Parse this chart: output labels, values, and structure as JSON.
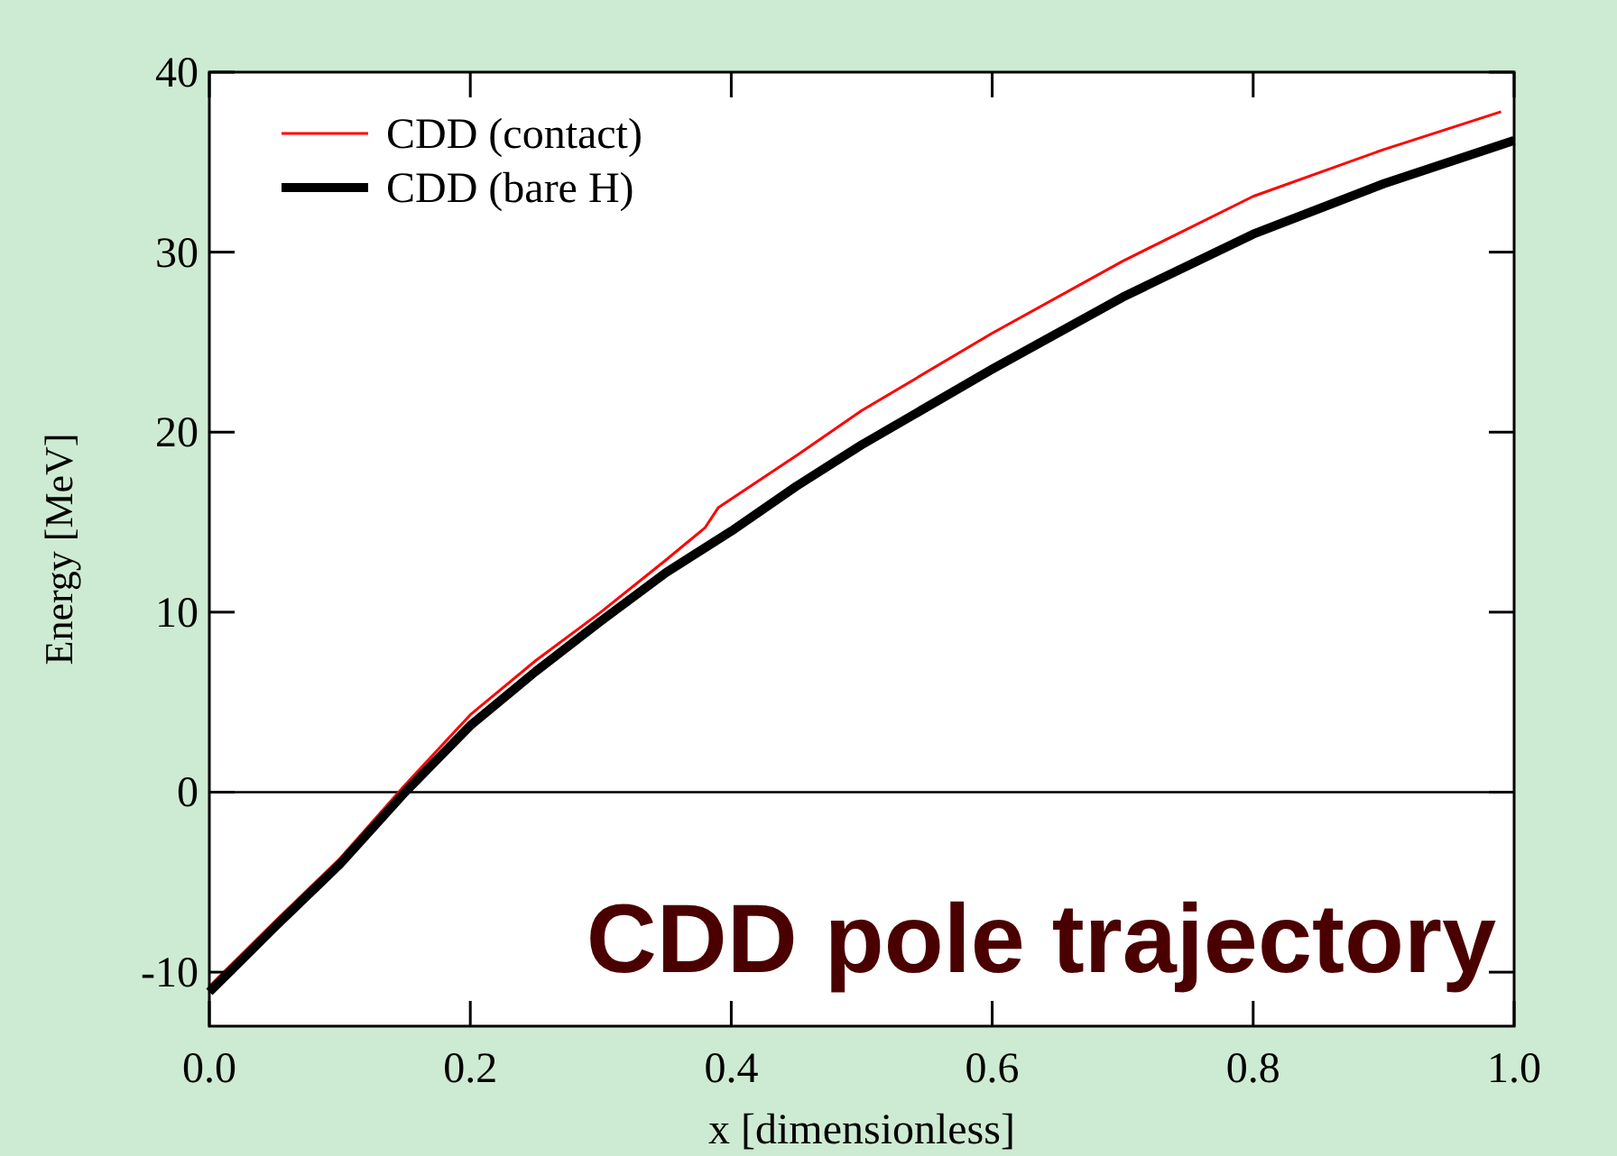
{
  "chart_data": {
    "type": "line",
    "xlabel": "x [dimensionless]",
    "ylabel": "Energy [MeV]",
    "xlim": [
      0,
      1
    ],
    "ylim": [
      -13,
      40
    ],
    "xticks": [
      {
        "value": 0,
        "label": "0.0"
      },
      {
        "value": 0.2,
        "label": "0.2"
      },
      {
        "value": 0.4,
        "label": "0.4"
      },
      {
        "value": 0.6,
        "label": "0.6"
      },
      {
        "value": 0.8,
        "label": "0.8"
      },
      {
        "value": 1,
        "label": "1.0"
      }
    ],
    "yticks": [
      -10,
      0,
      10,
      20,
      30,
      40
    ],
    "grid": false,
    "legend": "top left",
    "line_style": "solid",
    "ref_lines": [
      {
        "axis": "y",
        "value": 0,
        "color": "#000000"
      }
    ],
    "annotations": [
      "CDD pole trajectory"
    ],
    "series": [
      {
        "name": "CDD (contact)",
        "color": "#ff0000",
        "x": [
          0,
          0.05,
          0.1,
          0.15,
          0.2,
          0.25,
          0.3,
          0.35,
          0.38,
          0.39,
          0.45,
          0.5,
          0.6,
          0.7,
          0.8,
          0.9,
          0.99
        ],
        "values": [
          -10.8,
          -7.2,
          -3.7,
          0.4,
          4.3,
          7.3,
          10.0,
          12.9,
          14.7,
          15.8,
          18.7,
          21.2,
          25.5,
          29.5,
          33.1,
          35.7,
          37.8
        ]
      },
      {
        "name": "CDD (bare H)",
        "color": "#000000",
        "x": [
          0,
          0.05,
          0.1,
          0.15,
          0.2,
          0.25,
          0.3,
          0.35,
          0.4,
          0.45,
          0.5,
          0.6,
          0.7,
          0.8,
          0.9,
          1
        ],
        "values": [
          -11.1,
          -7.5,
          -4.0,
          0.0,
          3.7,
          6.7,
          9.5,
          12.2,
          14.5,
          17.0,
          19.3,
          23.5,
          27.5,
          31.0,
          33.8,
          36.2
        ]
      }
    ]
  }
}
